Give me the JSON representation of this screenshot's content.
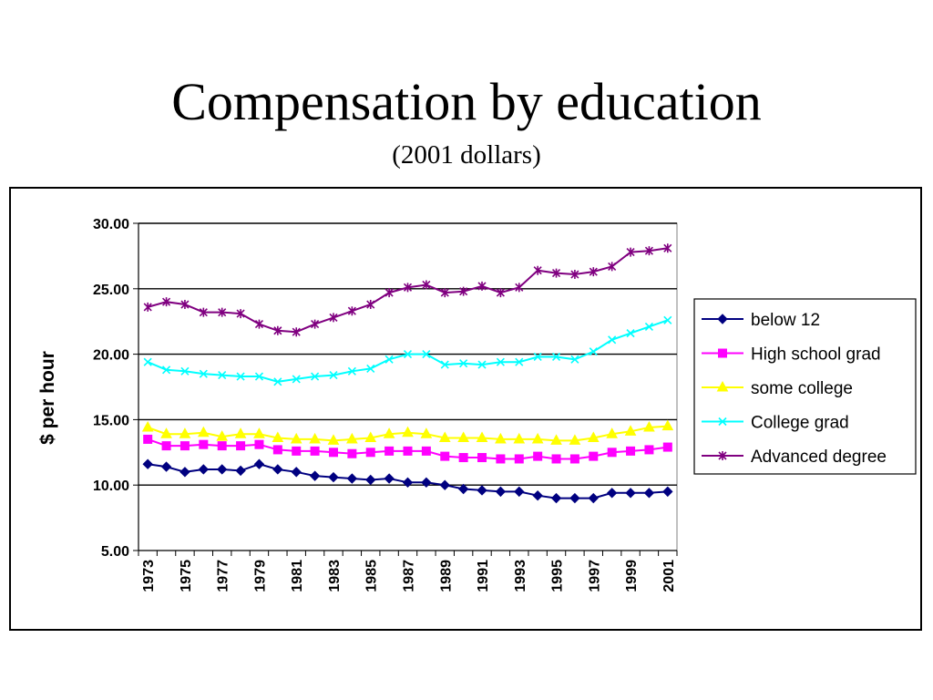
{
  "page": {
    "title": "Compensation by education",
    "subtitle": "(2001 dollars)"
  },
  "chart_data": {
    "type": "line",
    "title": "Compensation by education",
    "subtitle": "(2001 dollars)",
    "xlabel": "",
    "ylabel": "$ per hour",
    "ylim": [
      5,
      30
    ],
    "yticks": [
      "5.00",
      "10.00",
      "15.00",
      "20.00",
      "25.00",
      "30.00"
    ],
    "xtick_labels": [
      "1973",
      "1975",
      "1977",
      "1979",
      "1981",
      "1983",
      "1985",
      "1987",
      "1989",
      "1991",
      "1993",
      "1995",
      "1997",
      "1999",
      "2001"
    ],
    "grid": "horizontal major gridlines",
    "legend_position": "right",
    "x": [
      1973,
      1974,
      1975,
      1976,
      1977,
      1978,
      1979,
      1980,
      1981,
      1982,
      1983,
      1984,
      1985,
      1986,
      1987,
      1988,
      1989,
      1990,
      1991,
      1992,
      1993,
      1994,
      1995,
      1996,
      1997,
      1998,
      1999,
      2000,
      2001
    ],
    "series": [
      {
        "name": "below 12",
        "color": "#000080",
        "marker": "diamond",
        "values": [
          11.6,
          11.4,
          11.0,
          11.2,
          11.2,
          11.1,
          11.6,
          11.2,
          11.0,
          10.7,
          10.6,
          10.5,
          10.4,
          10.5,
          10.2,
          10.2,
          10.0,
          9.7,
          9.6,
          9.5,
          9.5,
          9.2,
          9.0,
          9.0,
          9.0,
          9.4,
          9.4,
          9.4,
          9.5
        ]
      },
      {
        "name": "High school grad",
        "color": "#FF00FF",
        "marker": "square",
        "values": [
          13.5,
          13.0,
          13.0,
          13.1,
          13.0,
          13.0,
          13.1,
          12.7,
          12.6,
          12.6,
          12.5,
          12.4,
          12.5,
          12.6,
          12.6,
          12.6,
          12.2,
          12.1,
          12.1,
          12.0,
          12.0,
          12.2,
          12.0,
          12.0,
          12.2,
          12.5,
          12.6,
          12.7,
          12.9
        ]
      },
      {
        "name": "some college",
        "color": "#FFFF00",
        "marker": "triangle",
        "values": [
          14.4,
          13.9,
          13.9,
          14.0,
          13.7,
          13.9,
          13.9,
          13.6,
          13.5,
          13.5,
          13.4,
          13.5,
          13.6,
          13.9,
          14.0,
          13.9,
          13.6,
          13.6,
          13.6,
          13.5,
          13.5,
          13.5,
          13.4,
          13.4,
          13.6,
          13.9,
          14.1,
          14.4,
          14.5
        ]
      },
      {
        "name": "College grad",
        "color": "#00FFFF",
        "marker": "x",
        "values": [
          19.4,
          18.8,
          18.7,
          18.5,
          18.4,
          18.3,
          18.3,
          17.9,
          18.1,
          18.3,
          18.4,
          18.7,
          18.9,
          19.6,
          20.0,
          20.0,
          19.2,
          19.3,
          19.2,
          19.4,
          19.4,
          19.8,
          19.8,
          19.6,
          20.2,
          21.1,
          21.6,
          22.1,
          22.6
        ]
      },
      {
        "name": "Advanced degree",
        "color": "#800080",
        "marker": "star",
        "values": [
          23.6,
          24.0,
          23.8,
          23.2,
          23.2,
          23.1,
          22.3,
          21.8,
          21.7,
          22.3,
          22.8,
          23.3,
          23.8,
          24.7,
          25.1,
          25.3,
          24.7,
          24.8,
          25.2,
          24.7,
          25.1,
          26.4,
          26.2,
          26.1,
          26.3,
          26.7,
          27.8,
          27.9,
          28.1
        ]
      }
    ]
  }
}
